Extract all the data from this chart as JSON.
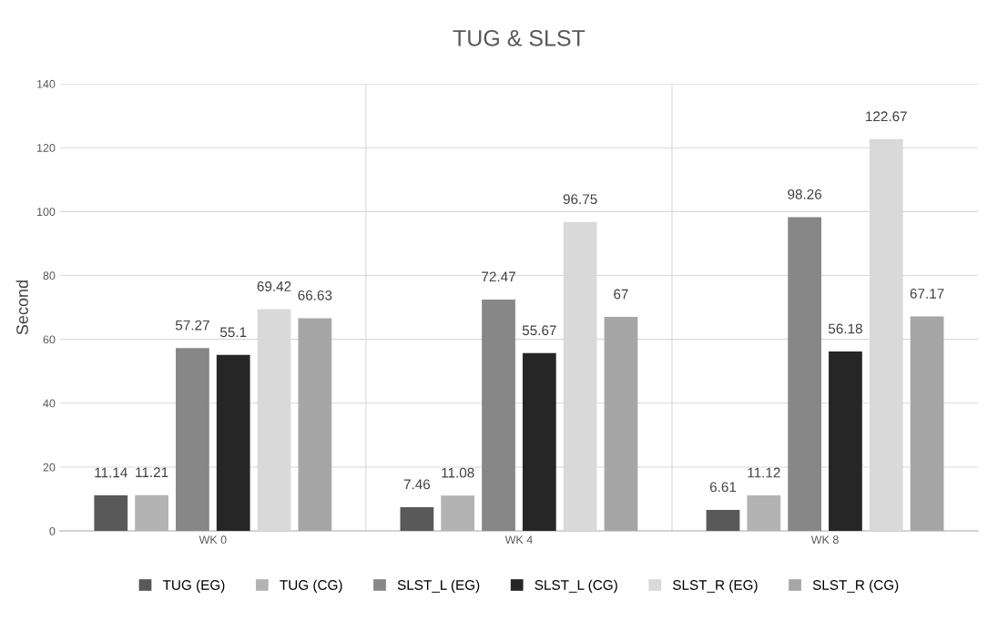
{
  "chart_data": {
    "type": "bar",
    "title": "TUG & SLST",
    "ylabel": "Second",
    "categories": [
      "WK 0",
      "WK 4",
      "WK 8"
    ],
    "series": [
      {
        "name": "TUG (EG)",
        "color": "#595959",
        "values": [
          11.14,
          7.46,
          6.61
        ]
      },
      {
        "name": "TUG (CG)",
        "color": "#b3b3b3",
        "values": [
          11.21,
          11.08,
          11.12
        ]
      },
      {
        "name": "SLST_L (EG)",
        "color": "#878787",
        "values": [
          57.27,
          72.47,
          98.26
        ]
      },
      {
        "name": "SLST_L (CG)",
        "color": "#262626",
        "values": [
          55.1,
          55.67,
          56.18
        ]
      },
      {
        "name": "SLST_R (EG)",
        "color": "#d9d9d9",
        "values": [
          69.42,
          96.75,
          122.67
        ]
      },
      {
        "name": "SLST_R (CG)",
        "color": "#a6a6a6",
        "values": [
          66.63,
          67,
          67.17
        ]
      }
    ],
    "ylim": [
      0,
      140
    ],
    "yticks": [
      0,
      20,
      40,
      60,
      80,
      100,
      120,
      140
    ],
    "grid": "y",
    "legend": "bottom",
    "data_labels": true
  }
}
